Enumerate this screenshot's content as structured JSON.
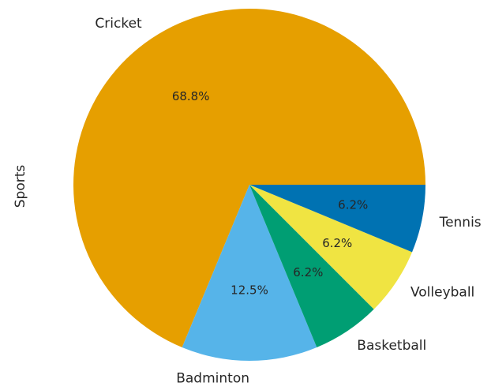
{
  "chart_data": {
    "type": "pie",
    "ylabel": "Sports",
    "start_angle_deg": 0,
    "direction": "counterclockwise",
    "autopct_format": "%.1f%%",
    "slices": [
      {
        "label": "Cricket",
        "value": 68.75,
        "pct_label": "68.8%",
        "color": "#E69F00"
      },
      {
        "label": "Badminton",
        "value": 12.5,
        "pct_label": "12.5%",
        "color": "#56B4E9"
      },
      {
        "label": "Basketball",
        "value": 6.25,
        "pct_label": "6.2%",
        "color": "#009E73"
      },
      {
        "label": "Volleyball",
        "value": 6.25,
        "pct_label": "6.2%",
        "color": "#F0E442"
      },
      {
        "label": "Tennis",
        "value": 6.25,
        "pct_label": "6.2%",
        "color": "#0072B2"
      }
    ]
  }
}
